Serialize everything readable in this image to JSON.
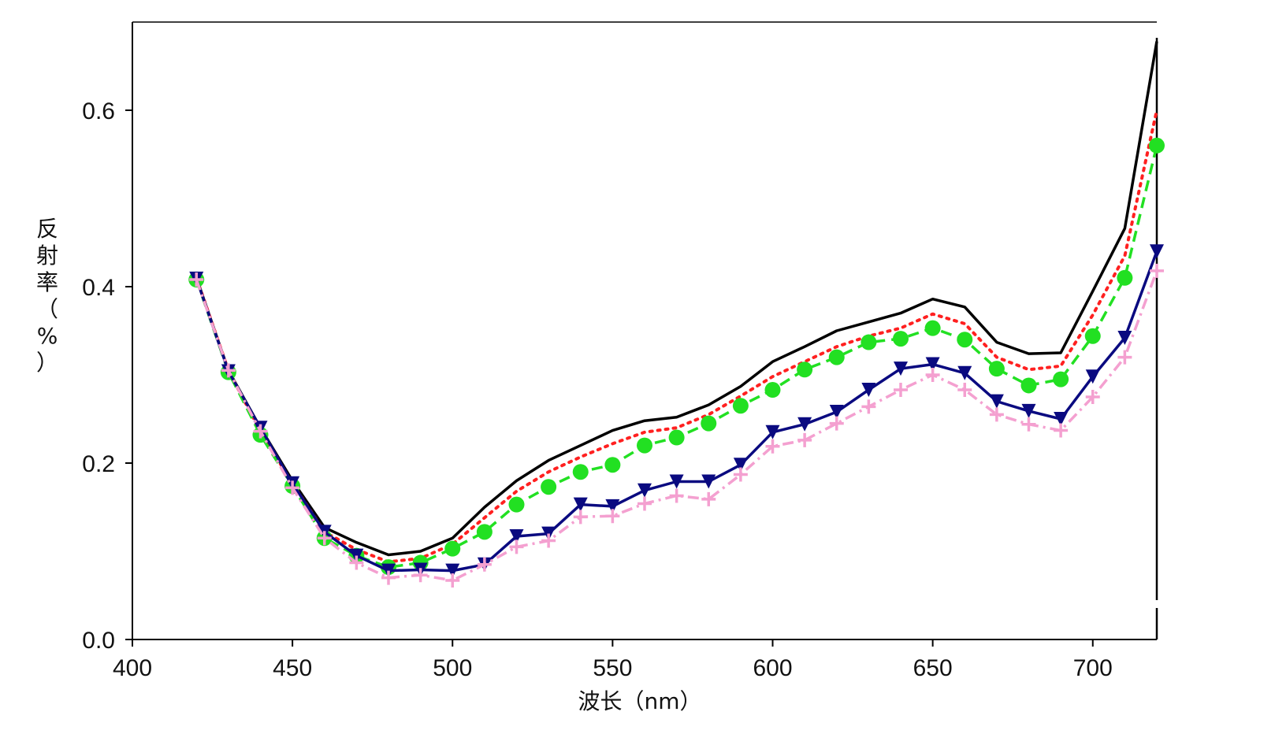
{
  "chart_data": {
    "type": "line",
    "title": "",
    "xlabel": "波长（nm）",
    "ylabel": "反射率（%）",
    "xlim": [
      400,
      720
    ],
    "ylim": [
      0,
      0.7
    ],
    "x_ticks": [
      400,
      450,
      500,
      550,
      600,
      650,
      700
    ],
    "x_tick_labels": [
      "400",
      "450",
      "500",
      "550",
      "600",
      "650",
      "700"
    ],
    "y_ticks": [
      0,
      0.2,
      0.4,
      0.6
    ],
    "y_tick_labels": [
      "0.0",
      "0.2",
      "0.4",
      "0.6"
    ],
    "grid": false,
    "legend": "none",
    "x": [
      420,
      430,
      440,
      450,
      460,
      470,
      480,
      490,
      500,
      510,
      520,
      530,
      540,
      550,
      560,
      570,
      580,
      590,
      600,
      610,
      620,
      630,
      640,
      650,
      660,
      670,
      680,
      690,
      700,
      710,
      720
    ],
    "series": [
      {
        "color": "#000000",
        "line_style": "solid",
        "marker": "none",
        "values": [
          0.41,
          0.305,
          0.24,
          0.18,
          0.127,
          0.11,
          0.096,
          0.1,
          0.115,
          0.15,
          0.18,
          0.203,
          0.22,
          0.237,
          0.248,
          0.252,
          0.266,
          0.287,
          0.315,
          0.332,
          0.35,
          0.36,
          0.37,
          0.386,
          0.377,
          0.337,
          0.324,
          0.325,
          0.395,
          0.466,
          0.678
        ]
      },
      {
        "color": "#ff2020",
        "line_style": "dotted",
        "marker": "none",
        "values": [
          0.41,
          0.305,
          0.236,
          0.177,
          0.122,
          0.102,
          0.088,
          0.092,
          0.108,
          0.138,
          0.168,
          0.19,
          0.207,
          0.222,
          0.235,
          0.24,
          0.255,
          0.276,
          0.298,
          0.315,
          0.332,
          0.344,
          0.353,
          0.369,
          0.358,
          0.32,
          0.306,
          0.31,
          0.368,
          0.435,
          0.6
        ]
      },
      {
        "color": "#22e022",
        "line_style": "dashed",
        "marker": "circle",
        "values": [
          0.408,
          0.303,
          0.232,
          0.174,
          0.115,
          0.095,
          0.082,
          0.087,
          0.103,
          0.122,
          0.153,
          0.173,
          0.19,
          0.198,
          0.22,
          0.229,
          0.245,
          0.265,
          0.283,
          0.306,
          0.32,
          0.337,
          0.341,
          0.353,
          0.34,
          0.307,
          0.288,
          0.295,
          0.344,
          0.41,
          0.56
        ]
      },
      {
        "color": "#0a0a80",
        "line_style": "solid",
        "marker": "triangle-down",
        "values": [
          0.409,
          0.304,
          0.24,
          0.177,
          0.122,
          0.095,
          0.078,
          0.079,
          0.078,
          0.085,
          0.117,
          0.12,
          0.153,
          0.151,
          0.169,
          0.179,
          0.179,
          0.198,
          0.235,
          0.244,
          0.258,
          0.283,
          0.307,
          0.312,
          0.302,
          0.27,
          0.259,
          0.25,
          0.298,
          0.342,
          0.44
        ]
      },
      {
        "color": "#f4a0d0",
        "line_style": "dashdot",
        "marker": "plus",
        "values": [
          0.408,
          0.305,
          0.236,
          0.172,
          0.115,
          0.087,
          0.07,
          0.073,
          0.067,
          0.085,
          0.105,
          0.112,
          0.139,
          0.14,
          0.154,
          0.163,
          0.159,
          0.187,
          0.219,
          0.226,
          0.245,
          0.264,
          0.283,
          0.3,
          0.283,
          0.255,
          0.244,
          0.237,
          0.275,
          0.32,
          0.418
        ]
      }
    ]
  }
}
